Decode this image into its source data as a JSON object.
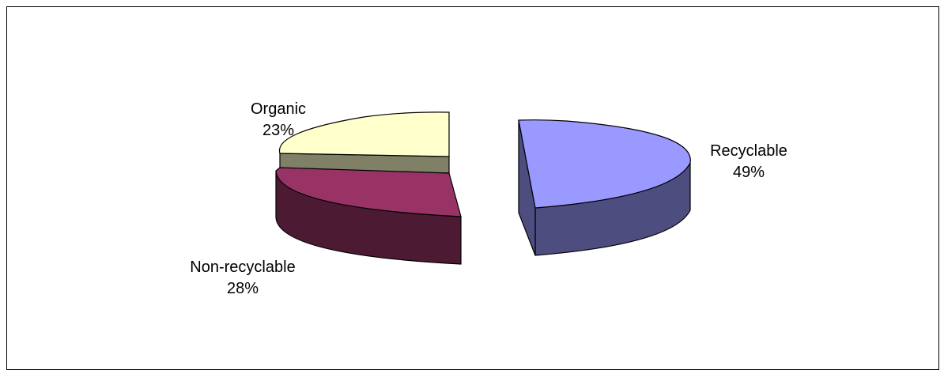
{
  "chart_data": {
    "type": "pie",
    "title": "",
    "slices": [
      {
        "label": "Recyclable",
        "value": 49,
        "display": "49%",
        "color": "#9999ff",
        "side_color": "#4d4d80"
      },
      {
        "label": "Non-recyclable",
        "value": 28,
        "display": "28%",
        "color": "#993366",
        "side_color": "#4d1a33"
      },
      {
        "label": "Organic",
        "value": 23,
        "display": "23%",
        "color": "#ffffcc",
        "side_color": "#808066"
      }
    ],
    "three_d": true,
    "exploded": true,
    "legend": "none"
  }
}
